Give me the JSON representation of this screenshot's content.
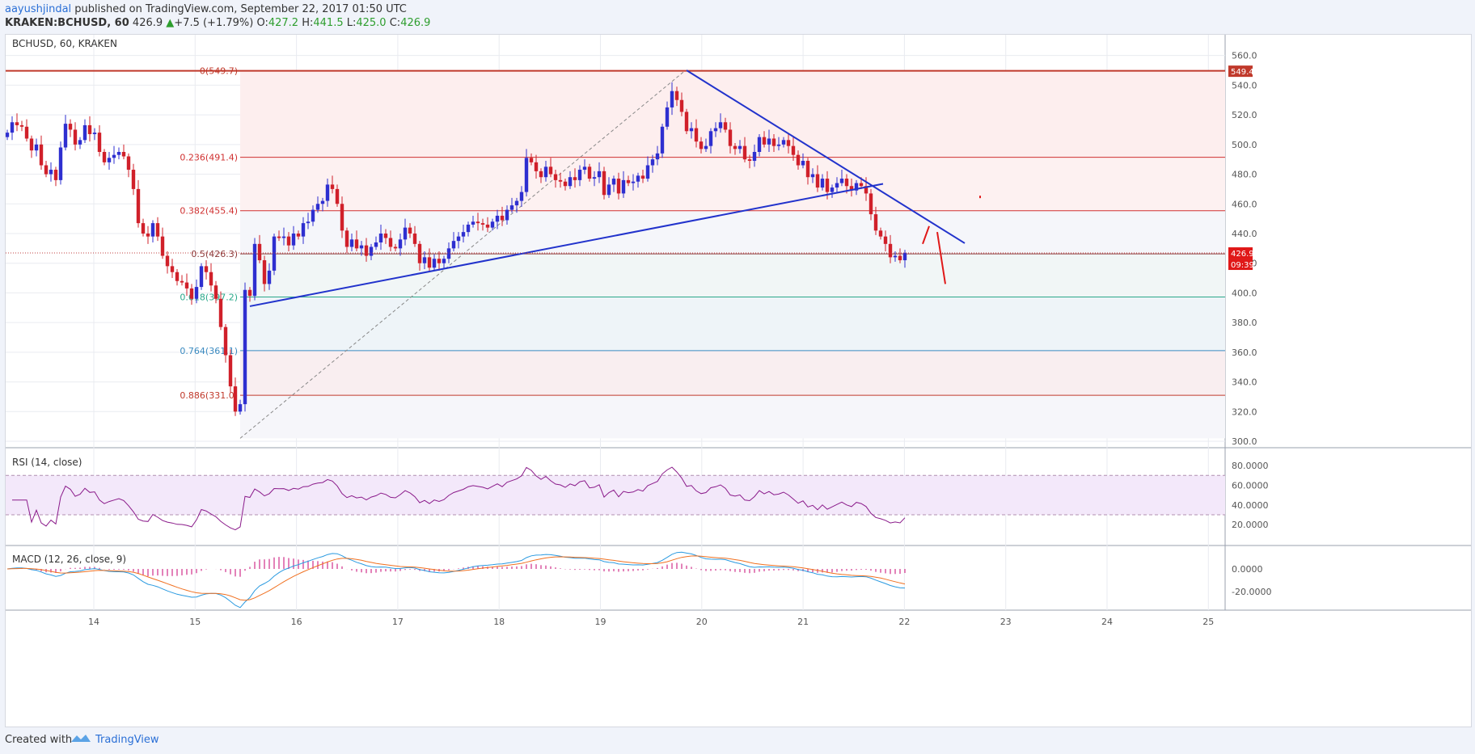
{
  "header": {
    "user": "aayushjindal",
    "published": " published on TradingView.com, September 22, 2017 01:50 UTC",
    "symbol": "KRAKEN:BCHUSD, 60",
    "price": "426.9",
    "change": "+7.5 (+1.79%)",
    "o_label": "O:",
    "o_val": "427.2",
    "h_label": "H:",
    "h_val": "441.5",
    "l_label": "L:",
    "l_val": "425.0",
    "c_label": "C:",
    "c_val": "426.9"
  },
  "footer": {
    "created": "Created with",
    "brand": "TradingView"
  },
  "colors": {
    "up": "#2e2fd0",
    "down": "#d0202a",
    "trend": "#2233cc",
    "rsi": "#8a1a8a",
    "macd": "#2a9ae0",
    "signal": "#f07020",
    "hist": "#d0308a"
  },
  "chart_data": [
    {
      "type": "candlestick",
      "title": "BCHUSD, 60, KRAKEN",
      "ylim": [
        300,
        570
      ],
      "y_ticks": [
        "560.0",
        "540.0",
        "520.0",
        "500.0",
        "480.0",
        "460.0",
        "440.0",
        "420.0",
        "400.0",
        "380.0",
        "360.0",
        "340.0",
        "320.0",
        "300.0"
      ],
      "x_ticks": [
        "14",
        "15",
        "16",
        "17",
        "18",
        "19",
        "20",
        "21",
        "22",
        "23",
        "24",
        "25"
      ],
      "last_price_label": "426.9",
      "countdown_label": "09:39",
      "high_label": "549.4",
      "fib_levels": [
        {
          "label": "0(549.7)",
          "value": 549.7,
          "color": "#c0392b"
        },
        {
          "label": "0.236(491.4)",
          "value": 491.4,
          "color": "#d03030"
        },
        {
          "label": "0.382(455.4)",
          "value": 455.4,
          "color": "#d03030"
        },
        {
          "label": "0.5(426.3)",
          "value": 426.3,
          "color": "#8b3a3a"
        },
        {
          "label": "0.618(397.2)",
          "value": 397.2,
          "color": "#2aa88a"
        },
        {
          "label": "0.764(361.1)",
          "value": 361.1,
          "color": "#3a8ac0"
        },
        {
          "label": "0.886(331.0)",
          "value": 331.0,
          "color": "#c0392b"
        }
      ],
      "closes": [
        508,
        515,
        513,
        512,
        504,
        496,
        500,
        486,
        480,
        483,
        476,
        498,
        514,
        510,
        500,
        503,
        513,
        507,
        508,
        495,
        488,
        491,
        493,
        495,
        492,
        483,
        470,
        447,
        440,
        438,
        447,
        438,
        425,
        418,
        414,
        408,
        407,
        403,
        396,
        404,
        418,
        414,
        405,
        396,
        377,
        358,
        337,
        320,
        325,
        402,
        398,
        433,
        422,
        406,
        415,
        438,
        437,
        438,
        432,
        440,
        438,
        447,
        448,
        456,
        460,
        462,
        473,
        470,
        460,
        442,
        431,
        436,
        430,
        432,
        425,
        431,
        434,
        440,
        437,
        431,
        430,
        436,
        444,
        440,
        433,
        420,
        424,
        417,
        423,
        420,
        423,
        430,
        435,
        438,
        441,
        446,
        448,
        447,
        446,
        444,
        448,
        452,
        449,
        456,
        459,
        462,
        468,
        491,
        488,
        482,
        478,
        485,
        480,
        476,
        475,
        472,
        478,
        476,
        483,
        485,
        477,
        478,
        482,
        466,
        473,
        477,
        467,
        476,
        474,
        475,
        479,
        477,
        486,
        490,
        494,
        512,
        525,
        536,
        530,
        522,
        509,
        511,
        502,
        497,
        499,
        509,
        511,
        515,
        510,
        499,
        497,
        499,
        490,
        489,
        495,
        505,
        500,
        504,
        499,
        500,
        503,
        499,
        493,
        486,
        489,
        478,
        480,
        471,
        477,
        468,
        471,
        474,
        477,
        472,
        469,
        474,
        472,
        467,
        453,
        442,
        438,
        433,
        424,
        425,
        422,
        427
      ]
    },
    {
      "type": "line",
      "title": "RSI (14, close)",
      "ylim": [
        14,
        84
      ],
      "y_ticks": [
        "80.0000",
        "60.0000",
        "40.0000",
        "20.0000"
      ]
    },
    {
      "type": "line",
      "title": "MACD (12, 26, close, 9)",
      "y_ticks": [
        "0.0000",
        "-20.0000"
      ]
    }
  ]
}
